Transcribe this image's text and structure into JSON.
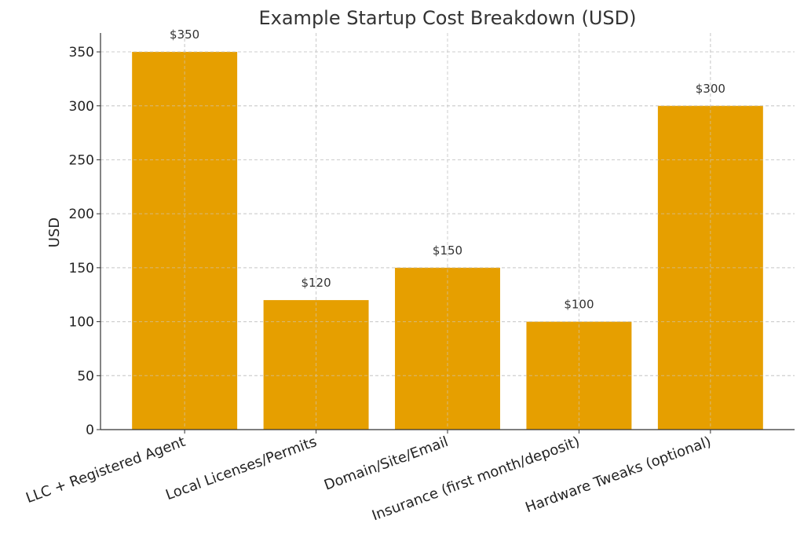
{
  "chart_data": {
    "type": "bar",
    "title": "Example Startup Cost Breakdown (USD)",
    "xlabel": "",
    "ylabel": "USD",
    "categories": [
      "LLC + Registered Agent",
      "Local Licenses/Permits",
      "Domain/Site/Email",
      "Insurance (first month/deposit)",
      "Hardware Tweaks (optional)"
    ],
    "values": [
      350,
      120,
      150,
      100,
      300
    ],
    "data_labels": [
      "$350",
      "$120",
      "$150",
      "$100",
      "$300"
    ],
    "ylim": [
      0,
      367.5
    ],
    "yticks": [
      0,
      50,
      100,
      150,
      200,
      250,
      300,
      350
    ],
    "grid": true,
    "bar_color": "#E69F00",
    "grid_color": "#cccccc",
    "axis_color": "#333333"
  }
}
